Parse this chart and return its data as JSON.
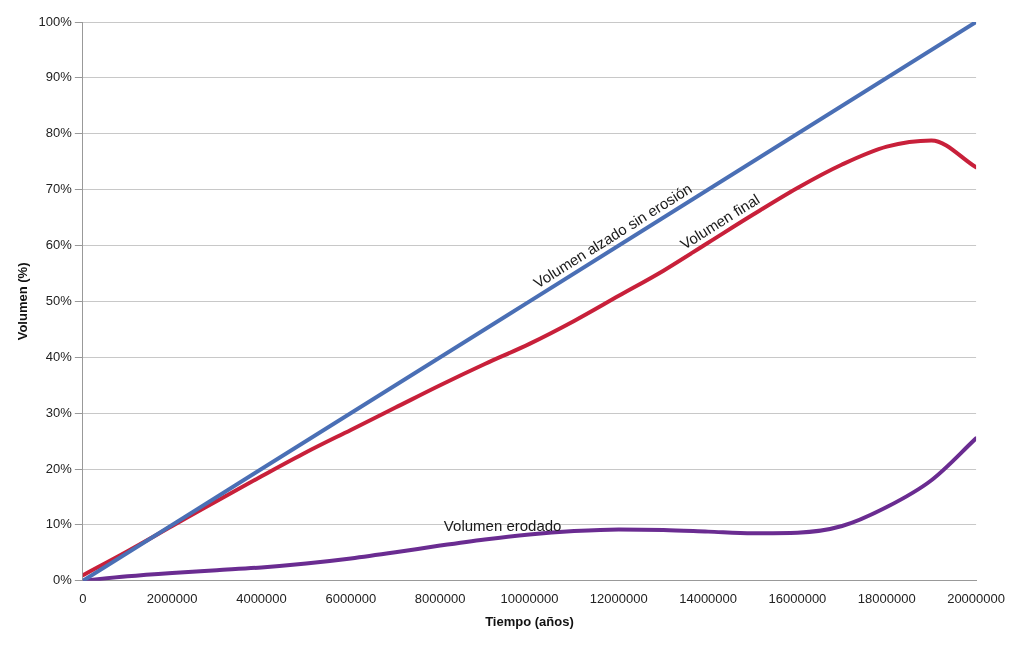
{
  "chart_data": {
    "type": "line",
    "xlabel": "Tiempo (años)",
    "ylabel": "Volumen (%)",
    "xlim": [
      0,
      20000000
    ],
    "xticks": [
      0,
      2000000,
      4000000,
      6000000,
      8000000,
      10000000,
      12000000,
      14000000,
      16000000,
      18000000,
      20000000
    ],
    "ylim": [
      0,
      100
    ],
    "yticks": [
      {
        "value": 0,
        "label": "0%"
      },
      {
        "value": 10,
        "label": "10%"
      },
      {
        "value": 20,
        "label": "20%"
      },
      {
        "value": 30,
        "label": "30%"
      },
      {
        "value": 40,
        "label": "40%"
      },
      {
        "value": 50,
        "label": "50%"
      },
      {
        "value": 60,
        "label": "60%"
      },
      {
        "value": 70,
        "label": "70%"
      },
      {
        "value": 80,
        "label": "80%"
      },
      {
        "value": 90,
        "label": "90%"
      },
      {
        "value": 100,
        "label": "100%"
      }
    ],
    "grid": "y",
    "legend": false,
    "marker": "none",
    "line_style": "solid",
    "series": [
      {
        "name": "Volumen alzado sin erosión",
        "color": "#4a6fb5",
        "x": [
          0,
          20000000
        ],
        "values": [
          0,
          100
        ]
      },
      {
        "name": "Volumen final",
        "color": "#c8203a",
        "x": [
          0,
          1000000,
          2000000,
          3000000,
          4000000,
          5000000,
          6000000,
          7000000,
          8000000,
          9000000,
          10000000,
          11000000,
          12000000,
          13000000,
          14000000,
          15000000,
          16000000,
          17000000,
          18000000,
          19000000,
          20000000
        ],
        "values": [
          1,
          5.3,
          9.8,
          14.3,
          18.7,
          23,
          27,
          31,
          35,
          38.8,
          42.4,
          46.5,
          51,
          55.5,
          60.5,
          65.5,
          70.3,
          74.5,
          77.7,
          78.8,
          74
        ]
      },
      {
        "name": "Volumen erodado",
        "color": "#6a2c91",
        "x": [
          0,
          1000000,
          2000000,
          3000000,
          4000000,
          5000000,
          6000000,
          7000000,
          8000000,
          9000000,
          10000000,
          11000000,
          12000000,
          13000000,
          14000000,
          15000000,
          16000000,
          17000000,
          18000000,
          19000000,
          20000000
        ],
        "values": [
          0,
          0.8,
          1.4,
          1.9,
          2.4,
          3.1,
          4,
          5.1,
          6.3,
          7.4,
          8.3,
          8.9,
          9.2,
          9.1,
          8.8,
          8.5,
          8.6,
          9.8,
          13.2,
          18,
          25.5
        ]
      }
    ]
  }
}
